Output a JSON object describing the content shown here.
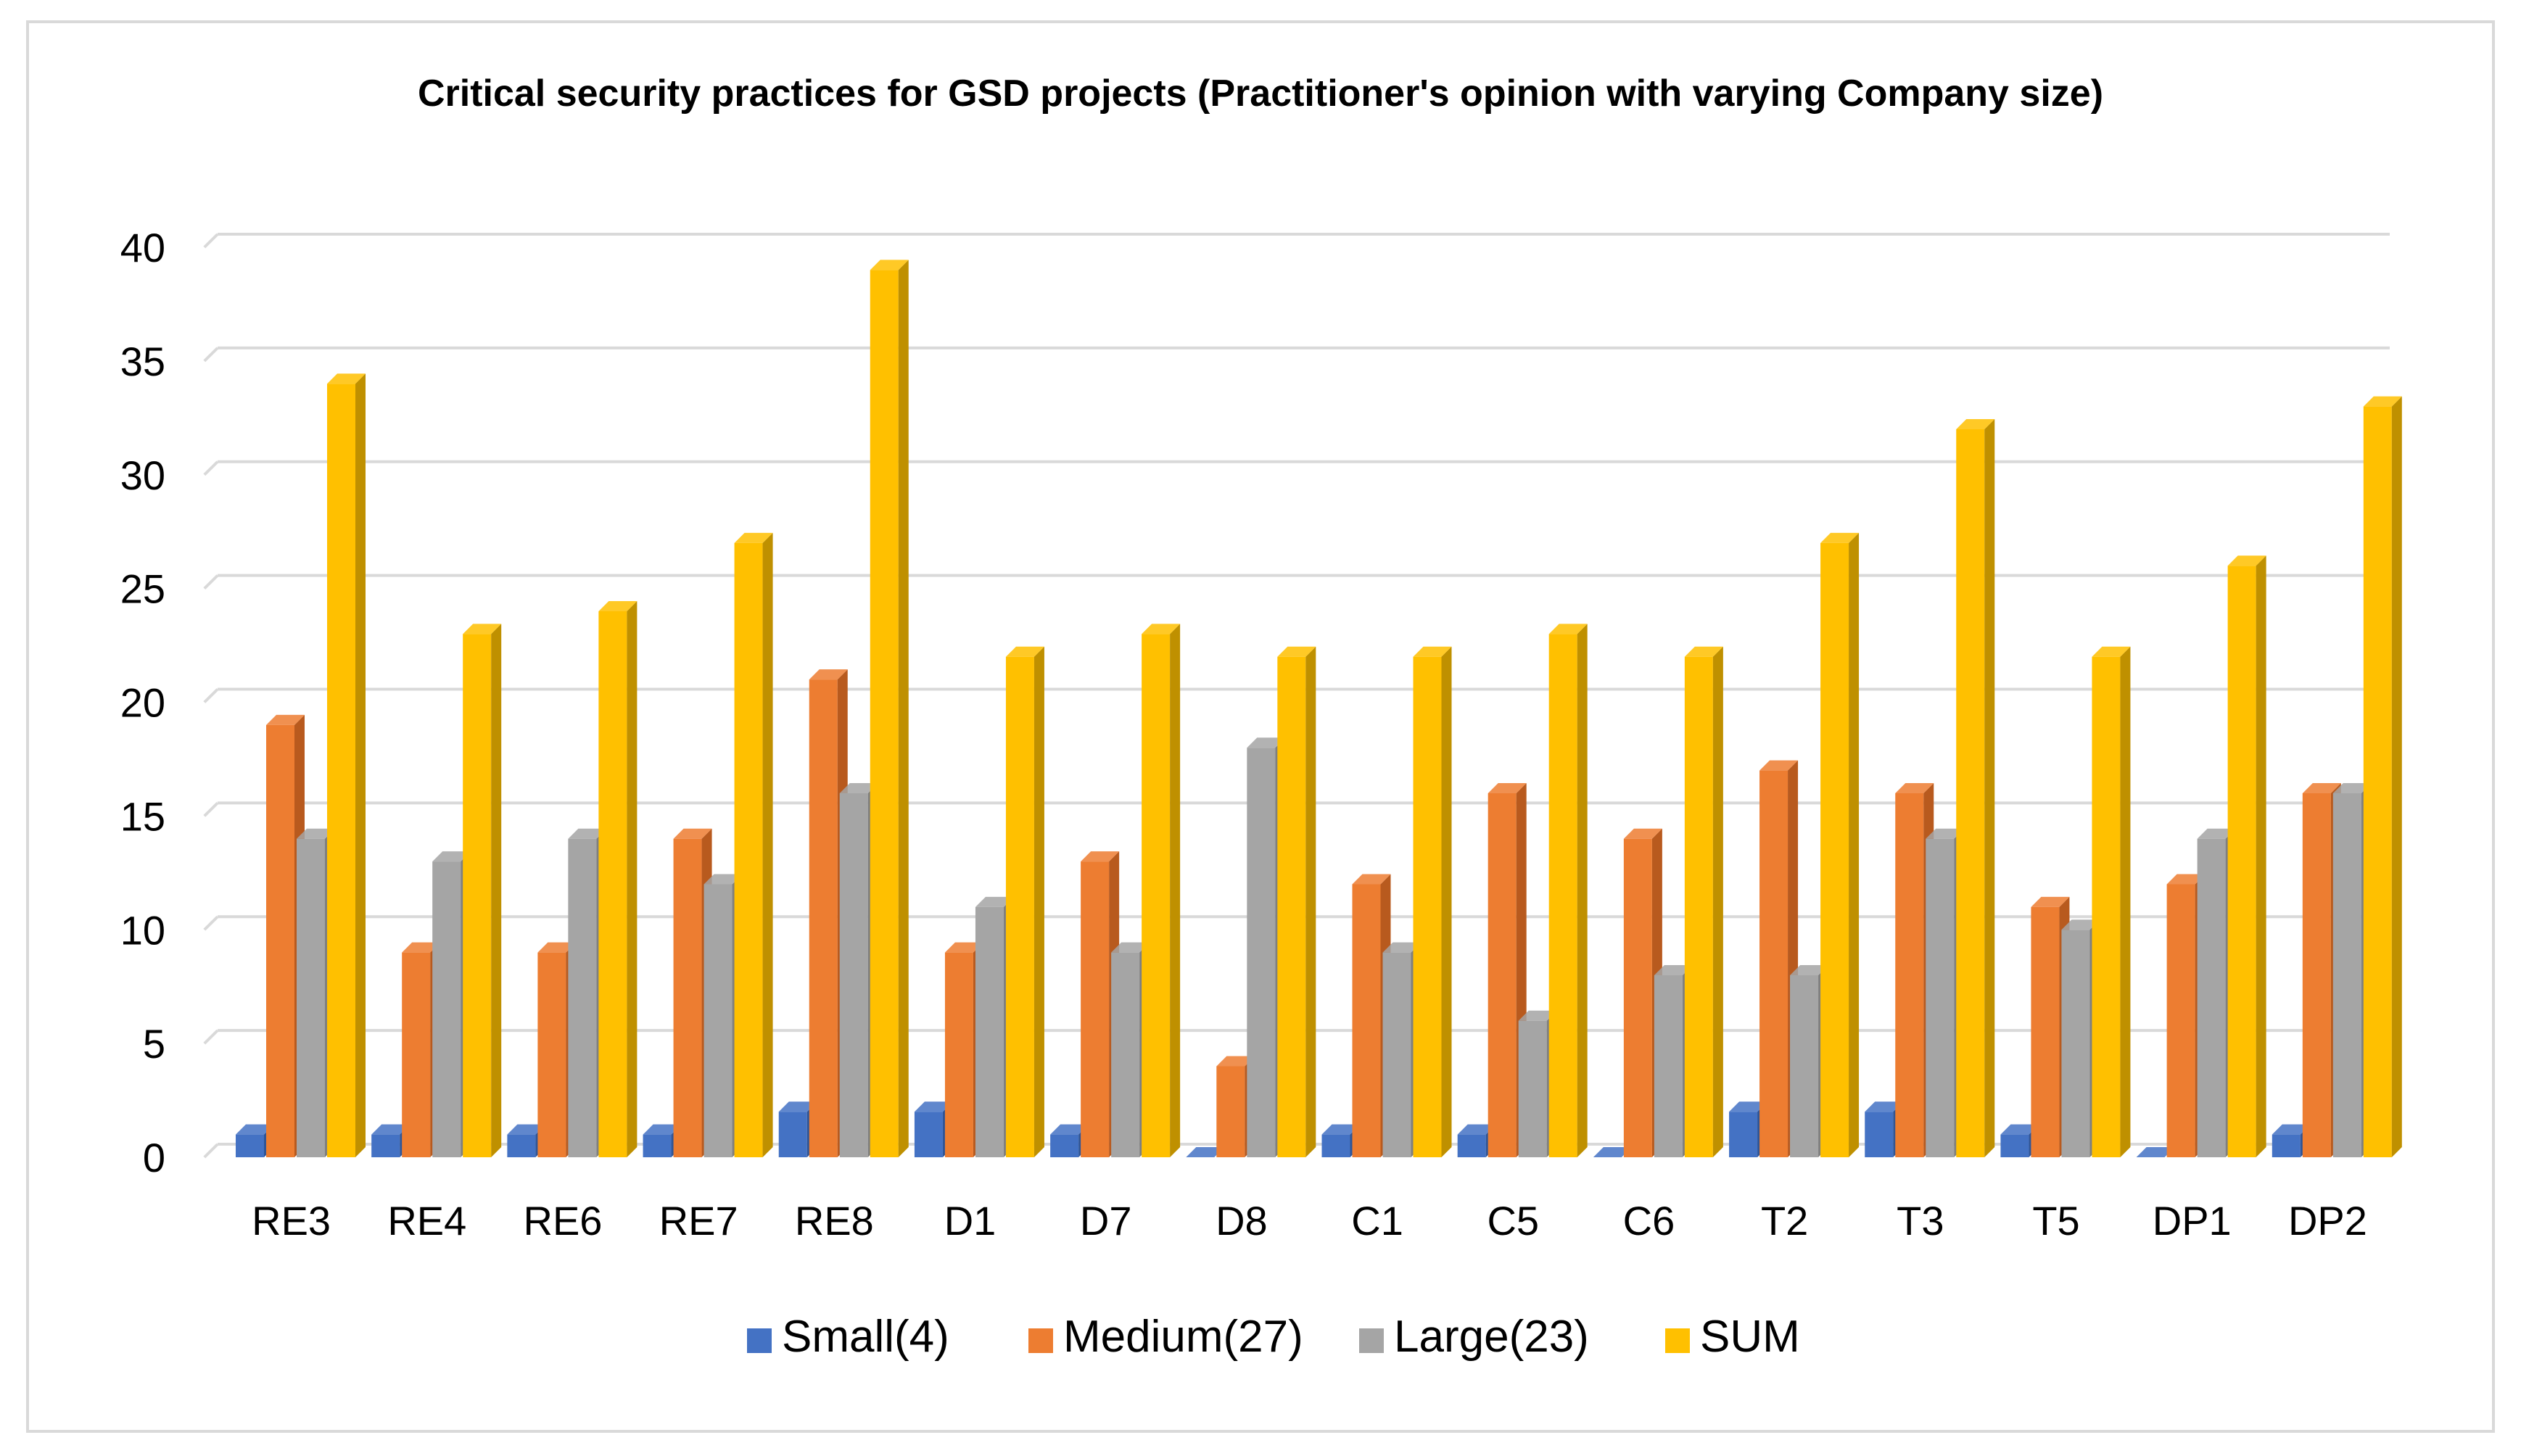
{
  "chart_data": {
    "type": "bar",
    "style": "3d-clustered-column",
    "title": "Critical security practices for GSD projects (Practitioner's opinion with varying Company size)",
    "xlabel": "",
    "ylabel": "",
    "ylim": [
      0,
      40
    ],
    "yticks": [
      0,
      5,
      10,
      15,
      20,
      25,
      30,
      35,
      40
    ],
    "grid": true,
    "legend_position": "bottom",
    "categories": [
      "RE3",
      "RE4",
      "RE6",
      "RE7",
      "RE8",
      "D1",
      "D7",
      "D8",
      "C1",
      "C5",
      "C6",
      "T2",
      "T3",
      "T5",
      "DP1",
      "DP2"
    ],
    "series": [
      {
        "name": "Small(4)",
        "color": "#4472C4",
        "side_color": "#2F5597",
        "values": [
          1,
          1,
          1,
          1,
          2,
          2,
          1,
          0,
          1,
          1,
          0,
          2,
          2,
          1,
          0,
          1
        ]
      },
      {
        "name": "Medium(27)",
        "color": "#ED7D31",
        "side_color": "#B85A1E",
        "values": [
          19,
          9,
          9,
          14,
          21,
          9,
          13,
          4,
          12,
          16,
          14,
          17,
          16,
          11,
          12,
          16
        ]
      },
      {
        "name": "Large(23)",
        "color": "#A5A5A5",
        "side_color": "#7F7F7F",
        "values": [
          14,
          13,
          14,
          12,
          16,
          11,
          9,
          18,
          9,
          6,
          8,
          8,
          14,
          10,
          14,
          16
        ]
      },
      {
        "name": "SUM",
        "color": "#FFC000",
        "side_color": "#BF9000",
        "values": [
          34,
          23,
          24,
          27,
          39,
          22,
          23,
          22,
          22,
          23,
          22,
          27,
          32,
          22,
          26,
          33
        ]
      }
    ]
  }
}
